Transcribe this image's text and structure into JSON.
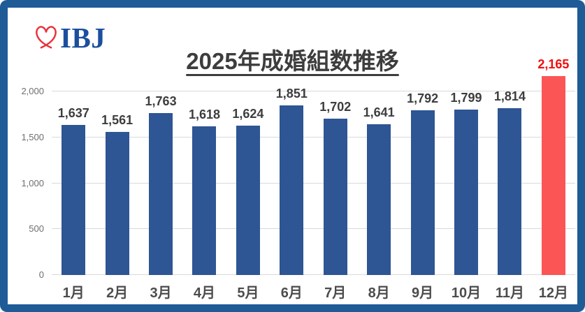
{
  "logo": {
    "text": "IBJ",
    "heart_color": "#e8323c",
    "text_color": "#1b4f9e"
  },
  "colors": {
    "frame_border": "#1f5c97",
    "background": "#ffffff",
    "gridline": "#d9d9d9"
  },
  "chart_data": {
    "type": "bar",
    "title": "2025年成婚組数推移",
    "categories": [
      "1月",
      "2月",
      "3月",
      "4月",
      "5月",
      "6月",
      "7月",
      "8月",
      "9月",
      "10月",
      "11月",
      "12月"
    ],
    "values": [
      1637,
      1561,
      1763,
      1618,
      1624,
      1851,
      1702,
      1641,
      1792,
      1799,
      1814,
      2165
    ],
    "value_labels": [
      "1,637",
      "1,561",
      "1,763",
      "1,618",
      "1,624",
      "1,851",
      "1,702",
      "1,641",
      "1,792",
      "1,799",
      "1,814",
      "2,165"
    ],
    "xlabel": "",
    "ylabel": "",
    "ylim": [
      0,
      2000
    ],
    "yticks": [
      0,
      500,
      1000,
      1500,
      2000
    ],
    "ytick_labels": [
      "0",
      "500",
      "1,000",
      "1,500",
      "2,000"
    ],
    "grid": true,
    "legend": false,
    "bar_color": "#2e5594",
    "label_color": "#3d3d3d",
    "highlight_index": 11,
    "highlight_bar_color": "#fc5555",
    "highlight_label_color": "#f40b0b"
  }
}
